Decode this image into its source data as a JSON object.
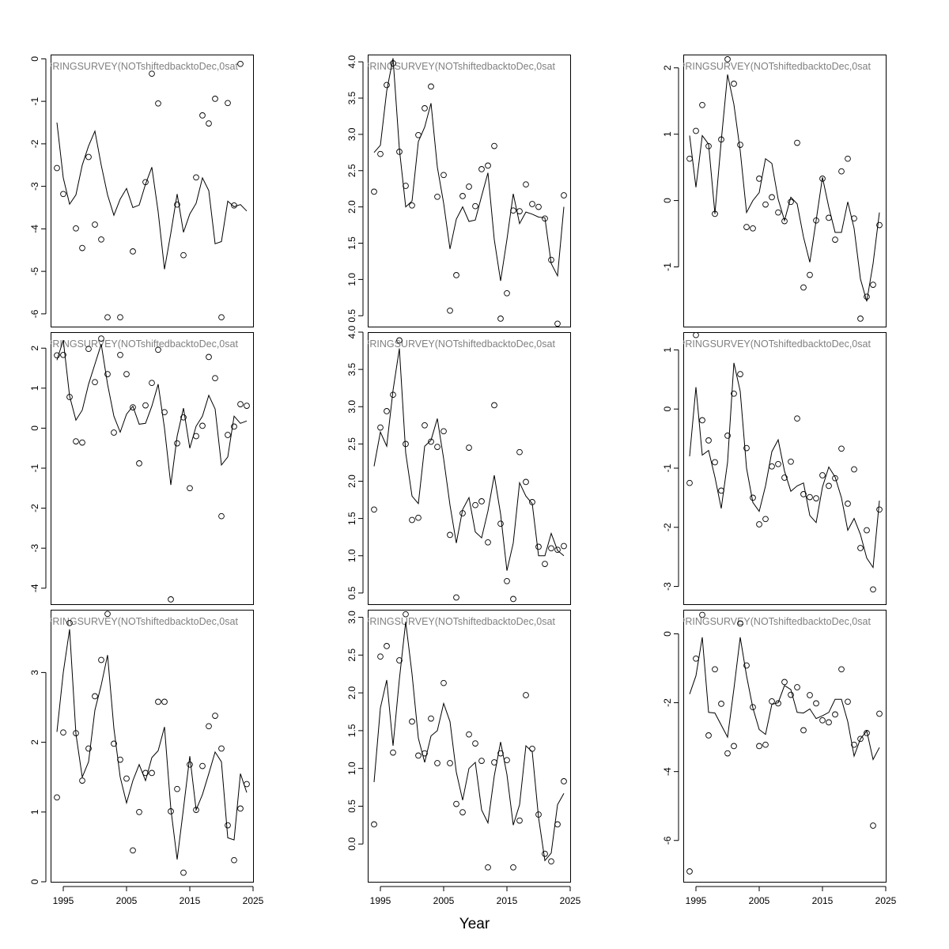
{
  "figure": {
    "xlabel": "Year"
  },
  "chart_data": [
    {
      "type": "line",
      "panel_label": "PRINGSURVEY(NOTshiftedbacktoDec,0sat",
      "xlim": [
        1993,
        2025
      ],
      "ylim": [
        -6.3,
        0.1
      ],
      "x_ticks": [],
      "y_ticks": [
        -6,
        -5,
        -4,
        -3,
        -2,
        -1,
        0
      ],
      "x": [
        1994,
        1995,
        1996,
        1997,
        1998,
        1999,
        2000,
        2001,
        2002,
        2003,
        2004,
        2005,
        2006,
        2007,
        2008,
        2009,
        2010,
        2011,
        2012,
        2013,
        2014,
        2015,
        2016,
        2017,
        2018,
        2019,
        2020,
        2021,
        2022,
        2023,
        2024
      ],
      "series": [
        {
          "style": "points",
          "values": [
            -2.57,
            -3.18,
            null,
            -3.99,
            -4.45,
            -2.31,
            -3.9,
            -4.25,
            -6.08,
            null,
            -6.08,
            null,
            -4.53,
            null,
            -2.9,
            -0.35,
            -1.05,
            null,
            null,
            -3.43,
            -4.62,
            null,
            -2.79,
            -1.33,
            -1.52,
            -0.94,
            -6.08,
            -1.04,
            -3.45,
            -0.12,
            null
          ]
        },
        {
          "style": "line",
          "values": [
            -1.5,
            -2.8,
            -3.42,
            -3.2,
            -2.5,
            -2.05,
            -1.7,
            -2.5,
            -3.2,
            -3.68,
            -3.3,
            -3.05,
            -3.5,
            -3.44,
            -2.95,
            -2.55,
            -3.6,
            -4.95,
            -4.1,
            -3.18,
            -4.08,
            -3.65,
            -3.4,
            -2.8,
            -3.1,
            -4.35,
            -4.3,
            -3.35,
            -3.48,
            -3.43,
            -3.58
          ]
        }
      ]
    },
    {
      "type": "line",
      "panel_label": "PRINGSURVEY(NOTshiftedbacktoDec,0sat",
      "xlim": [
        1993,
        2025
      ],
      "ylim": [
        0.35,
        4.1
      ],
      "x_ticks": [],
      "y_ticks": [
        0.5,
        1.0,
        1.5,
        2.0,
        2.5,
        3.0,
        3.5,
        4.0
      ],
      "x": [
        1994,
        1995,
        1996,
        1997,
        1998,
        1999,
        2000,
        2001,
        2002,
        2003,
        2004,
        2005,
        2006,
        2007,
        2008,
        2009,
        2010,
        2011,
        2012,
        2013,
        2014,
        2015,
        2016,
        2017,
        2018,
        2019,
        2020,
        2021,
        2022,
        2023,
        2024
      ],
      "series": [
        {
          "style": "points",
          "values": [
            2.21,
            2.73,
            3.68,
            3.98,
            2.76,
            2.29,
            2.02,
            2.99,
            3.36,
            3.66,
            2.14,
            2.44,
            0.57,
            1.06,
            2.15,
            2.28,
            2.01,
            2.52,
            2.57,
            2.84,
            0.46,
            0.81,
            1.95,
            1.94,
            2.31,
            2.04,
            2.0,
            1.84,
            1.27,
            0.39,
            2.16
          ]
        },
        {
          "style": "line",
          "values": [
            2.75,
            2.85,
            3.6,
            4.05,
            2.8,
            2.0,
            2.08,
            2.9,
            3.1,
            3.43,
            2.55,
            2.05,
            1.42,
            1.83,
            2.0,
            1.8,
            1.82,
            2.15,
            2.47,
            1.55,
            0.98,
            1.55,
            2.18,
            1.77,
            1.93,
            1.9,
            1.86,
            1.85,
            1.22,
            1.05,
            2.0
          ]
        }
      ]
    },
    {
      "type": "line",
      "panel_label": "PRINGSURVEY(NOTshiftedbacktoDec,0sat",
      "xlim": [
        1993,
        2025
      ],
      "ylim": [
        -1.9,
        2.2
      ],
      "x_ticks": [],
      "y_ticks": [
        -1,
        0,
        1,
        2
      ],
      "x": [
        1994,
        1995,
        1996,
        1997,
        1998,
        1999,
        2000,
        2001,
        2002,
        2003,
        2004,
        2005,
        2006,
        2007,
        2008,
        2009,
        2010,
        2011,
        2012,
        2013,
        2014,
        2015,
        2016,
        2017,
        2018,
        2019,
        2020,
        2021,
        2022,
        2023,
        2024
      ],
      "series": [
        {
          "style": "points",
          "values": [
            0.63,
            1.05,
            1.44,
            0.82,
            -0.2,
            0.92,
            2.13,
            1.76,
            0.84,
            -0.4,
            -0.42,
            0.33,
            -0.06,
            0.05,
            -0.18,
            -0.31,
            -0.02,
            0.87,
            -1.31,
            -1.12,
            -0.3,
            0.33,
            -0.26,
            -0.59,
            0.44,
            0.63,
            -0.27,
            -1.78,
            -1.45,
            -1.27,
            -0.37
          ]
        },
        {
          "style": "line",
          "values": [
            0.98,
            0.2,
            0.98,
            0.85,
            -0.2,
            0.9,
            1.9,
            1.45,
            0.75,
            -0.18,
            0.0,
            0.12,
            0.63,
            0.56,
            0.02,
            -0.3,
            0.05,
            -0.05,
            -0.55,
            -0.93,
            -0.3,
            0.35,
            -0.1,
            -0.48,
            -0.48,
            -0.02,
            -0.42,
            -1.18,
            -1.52,
            -0.95,
            -0.18
          ]
        }
      ]
    },
    {
      "type": "line",
      "panel_label": "PRINGSURVEY(NOTshiftedbacktoDec,0sat",
      "xlim": [
        1993,
        2025
      ],
      "ylim": [
        -4.4,
        2.4
      ],
      "x_ticks": [],
      "y_ticks": [
        -4,
        -3,
        -2,
        -1,
        0,
        1,
        2
      ],
      "x": [
        1994,
        1995,
        1996,
        1997,
        1998,
        1999,
        2000,
        2001,
        2002,
        2003,
        2004,
        2005,
        2006,
        2007,
        2008,
        2009,
        2010,
        2011,
        2012,
        2013,
        2014,
        2015,
        2016,
        2017,
        2018,
        2019,
        2020,
        2021,
        2022,
        2023,
        2024
      ],
      "series": [
        {
          "style": "points",
          "values": [
            1.82,
            1.83,
            0.78,
            -0.33,
            -0.36,
            1.98,
            1.15,
            2.24,
            1.35,
            -0.11,
            1.83,
            1.35,
            0.52,
            -0.88,
            0.57,
            1.13,
            1.96,
            0.4,
            -4.28,
            -0.38,
            0.27,
            -1.5,
            -0.2,
            0.06,
            1.78,
            1.25,
            -2.2,
            -0.17,
            0.04,
            0.6,
            0.56
          ]
        },
        {
          "style": "line",
          "values": [
            1.7,
            2.2,
            0.8,
            0.2,
            0.45,
            1.1,
            1.6,
            2.1,
            1.1,
            0.3,
            -0.1,
            0.35,
            0.55,
            0.1,
            0.12,
            0.55,
            1.1,
            0.0,
            -1.42,
            -0.2,
            0.5,
            -0.5,
            0.05,
            0.3,
            0.82,
            0.48,
            -0.92,
            -0.72,
            0.3,
            0.12,
            0.18
          ]
        }
      ]
    },
    {
      "type": "line",
      "panel_label": "PRINGSURVEY(NOTshiftedbacktoDec,0sat",
      "xlim": [
        1993,
        2025
      ],
      "ylim": [
        0.35,
        4.0
      ],
      "x_ticks": [],
      "y_ticks": [
        0.5,
        1.0,
        1.5,
        2.0,
        2.5,
        3.0,
        3.5,
        4.0
      ],
      "x": [
        1994,
        1995,
        1996,
        1997,
        1998,
        1999,
        2000,
        2001,
        2002,
        2003,
        2004,
        2005,
        2006,
        2007,
        2008,
        2009,
        2010,
        2011,
        2012,
        2013,
        2014,
        2015,
        2016,
        2017,
        2018,
        2019,
        2020,
        2021,
        2022,
        2023,
        2024
      ],
      "series": [
        {
          "style": "points",
          "values": [
            1.62,
            2.72,
            2.94,
            3.16,
            3.89,
            2.5,
            1.48,
            1.51,
            2.75,
            2.53,
            2.46,
            2.67,
            1.28,
            0.44,
            1.57,
            2.45,
            1.68,
            1.73,
            1.18,
            3.02,
            1.43,
            0.66,
            0.42,
            2.39,
            1.99,
            1.72,
            1.12,
            0.89,
            1.1,
            1.08,
            1.13
          ]
        },
        {
          "style": "line",
          "values": [
            2.2,
            2.66,
            2.47,
            3.22,
            3.78,
            2.38,
            1.8,
            1.7,
            2.47,
            2.55,
            2.84,
            2.3,
            1.68,
            1.17,
            1.62,
            1.78,
            1.32,
            1.24,
            1.6,
            2.08,
            1.56,
            0.8,
            1.17,
            1.98,
            1.8,
            1.7,
            1.0,
            1.0,
            1.3,
            1.07,
            1.0
          ]
        }
      ]
    },
    {
      "type": "line",
      "panel_label": "PRINGSURVEY(NOTshiftedbacktoDec,0sat",
      "xlim": [
        1993,
        2025
      ],
      "ylim": [
        -3.3,
        1.3
      ],
      "x_ticks": [],
      "y_ticks": [
        -3,
        -2,
        -1,
        0,
        1
      ],
      "x": [
        1994,
        1995,
        1996,
        1997,
        1998,
        1999,
        2000,
        2001,
        2002,
        2003,
        2004,
        2005,
        2006,
        2007,
        2008,
        2009,
        2010,
        2011,
        2012,
        2013,
        2014,
        2015,
        2016,
        2017,
        2018,
        2019,
        2020,
        2021,
        2022,
        2023,
        2024
      ],
      "series": [
        {
          "style": "points",
          "values": [
            -1.25,
            1.25,
            -0.19,
            -0.53,
            -0.9,
            -1.38,
            -0.45,
            0.26,
            0.59,
            -0.66,
            -1.5,
            -1.95,
            -1.86,
            -0.97,
            -0.93,
            -1.16,
            -0.89,
            -0.16,
            -1.44,
            -1.49,
            -1.51,
            -1.12,
            -1.3,
            -1.17,
            -0.67,
            -1.6,
            -1.02,
            -2.35,
            -2.05,
            -3.05,
            -1.7
          ]
        },
        {
          "style": "line",
          "values": [
            -0.8,
            0.37,
            -0.78,
            -0.7,
            -1.15,
            -1.68,
            -0.9,
            0.78,
            0.3,
            -1.0,
            -1.58,
            -1.73,
            -1.3,
            -0.72,
            -0.52,
            -1.05,
            -1.39,
            -1.3,
            -1.25,
            -1.8,
            -1.92,
            -1.32,
            -0.98,
            -1.15,
            -1.5,
            -2.05,
            -1.85,
            -2.12,
            -2.52,
            -2.68,
            -1.55
          ]
        }
      ]
    },
    {
      "type": "line",
      "panel_label": "PRINGSURVEY(NOTshiftedbacktoDec,0sat",
      "xlim": [
        1993,
        2025
      ],
      "ylim": [
        0.0,
        3.9
      ],
      "x_ticks": [
        1995,
        2005,
        2015,
        2025
      ],
      "y_ticks": [
        0,
        1,
        2,
        3
      ],
      "x": [
        1994,
        1995,
        1996,
        1997,
        1998,
        1999,
        2000,
        2001,
        2002,
        2003,
        2004,
        2005,
        2006,
        2007,
        2008,
        2009,
        2010,
        2011,
        2012,
        2013,
        2014,
        2015,
        2016,
        2017,
        2018,
        2019,
        2020,
        2021,
        2022,
        2023,
        2024
      ],
      "series": [
        {
          "style": "points",
          "values": [
            1.21,
            2.14,
            3.71,
            2.13,
            1.45,
            1.91,
            2.66,
            3.18,
            3.84,
            1.98,
            1.75,
            1.48,
            0.45,
            1.0,
            1.56,
            1.56,
            2.58,
            2.58,
            1.01,
            1.33,
            0.13,
            1.68,
            1.03,
            1.66,
            2.23,
            2.38,
            1.91,
            0.81,
            0.31,
            1.05,
            1.4
          ]
        },
        {
          "style": "line",
          "values": [
            2.15,
            3.0,
            3.62,
            2.12,
            1.5,
            1.72,
            2.46,
            2.82,
            3.25,
            2.2,
            1.5,
            1.13,
            1.45,
            1.68,
            1.45,
            1.78,
            1.88,
            2.22,
            1.05,
            0.32,
            1.05,
            1.8,
            1.03,
            1.25,
            1.55,
            1.86,
            1.72,
            0.63,
            0.6,
            1.55,
            1.28
          ]
        }
      ]
    },
    {
      "type": "line",
      "panel_label": "PRINGSURVEY(NOTshiftedbacktoDec,0sat",
      "xlim": [
        1993,
        2025
      ],
      "ylim": [
        -0.5,
        3.1
      ],
      "x_ticks": [
        1995,
        2005,
        2015,
        2025
      ],
      "y_ticks": [
        0.0,
        0.5,
        1.0,
        1.5,
        2.0,
        2.5,
        3.0
      ],
      "x": [
        1994,
        1995,
        1996,
        1997,
        1998,
        1999,
        2000,
        2001,
        2002,
        2003,
        2004,
        2005,
        2006,
        2007,
        2008,
        2009,
        2010,
        2011,
        2012,
        2013,
        2014,
        2015,
        2016,
        2017,
        2018,
        2019,
        2020,
        2021,
        2022,
        2023,
        2024
      ],
      "series": [
        {
          "style": "points",
          "values": [
            0.26,
            2.48,
            2.62,
            1.21,
            2.43,
            3.04,
            1.62,
            1.17,
            1.2,
            1.66,
            1.07,
            2.13,
            1.07,
            0.53,
            0.42,
            1.45,
            1.33,
            1.1,
            -0.31,
            1.08,
            1.2,
            1.11,
            -0.31,
            0.31,
            1.97,
            1.26,
            0.39,
            -0.13,
            -0.23,
            0.26,
            0.83
          ]
        },
        {
          "style": "line",
          "values": [
            0.82,
            1.8,
            2.17,
            1.3,
            2.18,
            2.94,
            2.25,
            1.4,
            1.08,
            1.43,
            1.5,
            1.86,
            1.62,
            0.95,
            0.58,
            1.0,
            1.08,
            0.45,
            0.28,
            0.9,
            1.35,
            0.92,
            0.25,
            0.52,
            1.3,
            1.22,
            0.35,
            -0.22,
            -0.12,
            0.52,
            0.67
          ]
        }
      ]
    },
    {
      "type": "line",
      "panel_label": "PRINGSURVEY(NOTshiftedbacktoDec,0sat",
      "xlim": [
        1993,
        2025
      ],
      "ylim": [
        -7.2,
        0.7
      ],
      "x_ticks": [
        1995,
        2005,
        2015,
        2025
      ],
      "y_ticks": [
        -6,
        -4,
        -2,
        0
      ],
      "x": [
        1994,
        1995,
        1996,
        1997,
        1998,
        1999,
        2000,
        2001,
        2002,
        2003,
        2004,
        2005,
        2006,
        2007,
        2008,
        2009,
        2010,
        2011,
        2012,
        2013,
        2014,
        2015,
        2016,
        2017,
        2018,
        2019,
        2020,
        2021,
        2022,
        2023,
        2024
      ],
      "series": [
        {
          "style": "points",
          "values": [
            -6.9,
            -0.72,
            0.55,
            -2.95,
            -1.03,
            -2.03,
            -3.47,
            -3.26,
            0.3,
            -0.92,
            -2.13,
            -3.26,
            -3.22,
            -1.96,
            -2.02,
            -1.4,
            -1.77,
            -1.55,
            -2.8,
            -1.78,
            -2.02,
            -2.51,
            -2.57,
            -2.34,
            -1.03,
            -1.97,
            -3.22,
            -3.05,
            -2.88,
            -5.57,
            -2.32
          ]
        },
        {
          "style": "line",
          "values": [
            -1.75,
            -1.22,
            -0.1,
            -2.28,
            -2.3,
            -2.65,
            -3.0,
            -1.6,
            -0.1,
            -1.22,
            -2.15,
            -2.78,
            -2.92,
            -2.05,
            -2.0,
            -1.5,
            -1.62,
            -2.28,
            -2.3,
            -2.18,
            -2.46,
            -2.38,
            -2.28,
            -1.9,
            -1.9,
            -2.55,
            -3.55,
            -3.05,
            -2.82,
            -3.65,
            -3.3
          ]
        }
      ]
    }
  ]
}
